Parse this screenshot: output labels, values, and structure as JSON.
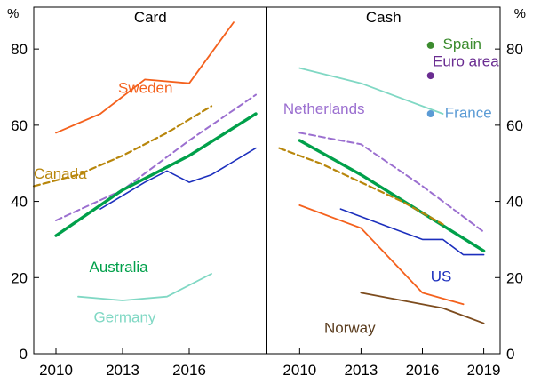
{
  "page": {
    "background": "#ffffff"
  },
  "chart_data": {
    "type": "line",
    "unit_label": "%",
    "ylim": [
      0,
      91
    ],
    "yticks": [
      0,
      20,
      40,
      60,
      80
    ],
    "panels": [
      {
        "id": "card",
        "title": "Card",
        "xticks": [
          2010,
          2013,
          2016
        ],
        "series": [
          {
            "name": "Sweden",
            "color": "#f4611d",
            "style": "solid",
            "width": 1.8,
            "points": [
              [
                2010,
                58
              ],
              [
                2012,
                63
              ],
              [
                2014,
                72
              ],
              [
                2016,
                71
              ],
              [
                2018,
                87
              ]
            ]
          },
          {
            "name": "Canada",
            "color": "#b8860b",
            "style": "dashed",
            "width": 2.2,
            "points": [
              [
                2009,
                44
              ],
              [
                2011,
                47
              ],
              [
                2013,
                52
              ],
              [
                2015,
                58
              ],
              [
                2017,
                65
              ]
            ]
          },
          {
            "name": "Netherlands",
            "color": "#9b6fd0",
            "style": "dashed",
            "width": 2.0,
            "points": [
              [
                2010,
                35
              ],
              [
                2013,
                43
              ],
              [
                2016,
                56
              ],
              [
                2019,
                68
              ]
            ]
          },
          {
            "name": "Australia",
            "color": "#00a04a",
            "style": "solid",
            "width": 3.4,
            "points": [
              [
                2010,
                31
              ],
              [
                2013,
                43
              ],
              [
                2016,
                52
              ],
              [
                2019,
                63
              ]
            ]
          },
          {
            "name": "US",
            "color": "#1c2fbd",
            "style": "solid",
            "width": 1.6,
            "points": [
              [
                2012,
                38
              ],
              [
                2014,
                45
              ],
              [
                2015,
                48
              ],
              [
                2016,
                45
              ],
              [
                2017,
                47
              ],
              [
                2019,
                54
              ]
            ]
          },
          {
            "name": "Germany",
            "color": "#80d8c4",
            "style": "solid",
            "width": 1.8,
            "points": [
              [
                2011,
                15
              ],
              [
                2013,
                14
              ],
              [
                2015,
                15
              ],
              [
                2017,
                21
              ]
            ]
          }
        ],
        "labels": [
          {
            "text": "Sweden",
            "color": "#f4611d",
            "x": 2012.8,
            "y": 68.5
          },
          {
            "text": "Canada",
            "color": "#b8860b",
            "x": 2009.0,
            "y": 46
          },
          {
            "text": "Australia",
            "color": "#00a04a",
            "x": 2011.5,
            "y": 21.5
          },
          {
            "text": "Germany",
            "color": "#80d8c4",
            "x": 2011.7,
            "y": 8.3
          }
        ],
        "dots": []
      },
      {
        "id": "cash",
        "title": "Cash",
        "xticks": [
          2010,
          2013,
          2016,
          2019
        ],
        "series": [
          {
            "name": "Germany",
            "color": "#80d8c4",
            "style": "solid",
            "width": 1.8,
            "points": [
              [
                2010,
                75
              ],
              [
                2013,
                71
              ],
              [
                2017,
                63
              ]
            ]
          },
          {
            "name": "Netherlands",
            "color": "#9b6fd0",
            "style": "dashed",
            "width": 2.0,
            "points": [
              [
                2010,
                58
              ],
              [
                2013,
                55
              ],
              [
                2016,
                44
              ],
              [
                2019,
                32
              ]
            ]
          },
          {
            "name": "Australia",
            "color": "#00a04a",
            "style": "solid",
            "width": 3.4,
            "points": [
              [
                2010,
                56
              ],
              [
                2013,
                47
              ],
              [
                2016,
                37
              ],
              [
                2019,
                27
              ]
            ]
          },
          {
            "name": "Canada",
            "color": "#b8860b",
            "style": "dashed",
            "width": 2.2,
            "points": [
              [
                2009,
                54
              ],
              [
                2011,
                50
              ],
              [
                2013,
                45
              ],
              [
                2015,
                40
              ],
              [
                2017,
                34
              ]
            ]
          },
          {
            "name": "Sweden",
            "color": "#f4611d",
            "style": "solid",
            "width": 1.8,
            "points": [
              [
                2010,
                39
              ],
              [
                2013,
                33
              ],
              [
                2016,
                16
              ],
              [
                2018,
                13
              ]
            ]
          },
          {
            "name": "US",
            "color": "#1c2fbd",
            "style": "solid",
            "width": 1.6,
            "points": [
              [
                2012,
                38
              ],
              [
                2014,
                34
              ],
              [
                2016,
                30
              ],
              [
                2017,
                30
              ],
              [
                2018,
                26
              ],
              [
                2019,
                26
              ]
            ]
          },
          {
            "name": "Norway",
            "color": "#7d4c1e",
            "style": "solid",
            "width": 1.8,
            "points": [
              [
                2013,
                16
              ],
              [
                2015,
                14
              ],
              [
                2017,
                12
              ],
              [
                2019,
                8
              ]
            ]
          }
        ],
        "labels": [
          {
            "text": "Netherlands",
            "color": "#9b6fd0",
            "x": 2009.2,
            "y": 63
          },
          {
            "text": "Spain",
            "color": "#3c8c2f",
            "x": 2017.0,
            "y": 80
          },
          {
            "text": "Euro area",
            "color": "#6a2d91",
            "x": 2016.5,
            "y": 75.5
          },
          {
            "text": "France",
            "color": "#5b9bd5",
            "x": 2017.1,
            "y": 62
          },
          {
            "text": "US",
            "color": "#1c2fbd",
            "x": 2016.4,
            "y": 19
          },
          {
            "text": "Norway",
            "color": "#5a3c1e",
            "x": 2011.2,
            "y": 5.5
          }
        ],
        "dots": [
          {
            "name": "Spain",
            "color": "#3c8c2f",
            "x": 2016.4,
            "y": 81
          },
          {
            "name": "Euro area",
            "color": "#6a2d91",
            "x": 2016.4,
            "y": 73
          },
          {
            "name": "France",
            "color": "#5b9bd5",
            "x": 2016.4,
            "y": 63
          }
        ]
      }
    ]
  }
}
